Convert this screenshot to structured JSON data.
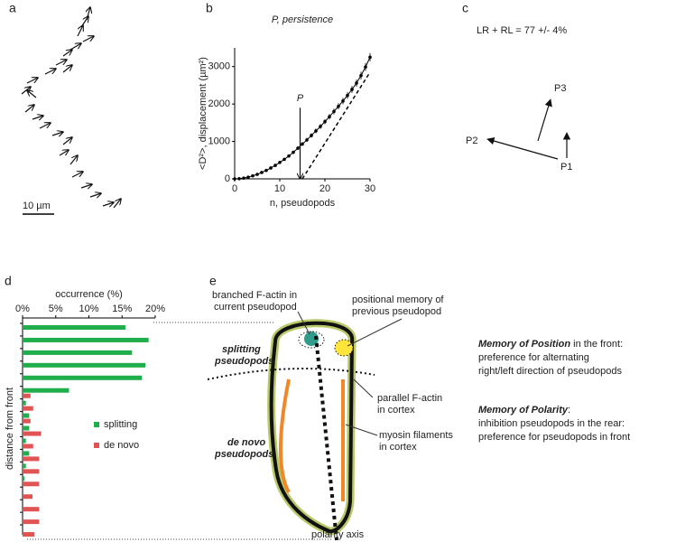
{
  "panel_labels": [
    "a",
    "b",
    "c",
    "d",
    "e"
  ],
  "panel_a": {
    "scale_bar": "10 µm"
  },
  "chart_data": [
    {
      "type": "line",
      "title": "P, persistence",
      "xlabel": "n, pseudopods",
      "ylabel": "<D²>, displacement (µm²)",
      "x": [
        0,
        1,
        2,
        3,
        4,
        5,
        6,
        7,
        8,
        9,
        10,
        11,
        12,
        13,
        14,
        15,
        16,
        17,
        18,
        19,
        20,
        21,
        22,
        23,
        24,
        25,
        26,
        27,
        28,
        29,
        30
      ],
      "series": [
        {
          "color": "#000000",
          "values": [
            0,
            5,
            20,
            45,
            80,
            120,
            170,
            225,
            290,
            360,
            440,
            520,
            610,
            710,
            820,
            930,
            1040,
            1160,
            1280,
            1400,
            1530,
            1660,
            1800,
            1940,
            2080,
            2230,
            2390,
            2560,
            2760,
            2990,
            3250
          ],
          "errors": [
            0,
            2,
            4,
            6,
            8,
            10,
            14,
            18,
            22,
            26,
            30,
            34,
            38,
            42,
            46,
            50,
            54,
            58,
            62,
            66,
            70,
            74,
            78,
            82,
            86,
            90,
            94,
            98,
            102,
            106,
            110
          ]
        }
      ],
      "fit_line": {
        "x": [
          15,
          30
        ],
        "values": [
          0,
          2850
        ]
      },
      "annotation": {
        "text": "P",
        "x": 14.5,
        "y_from": 1900,
        "y_to": 0
      },
      "xlim": [
        0,
        30
      ],
      "xticks": [
        0,
        10,
        20,
        30
      ],
      "ylim": [
        0,
        3500
      ],
      "yticks": [
        0,
        1000,
        2000,
        3000
      ]
    },
    {
      "type": "hbar",
      "xlabel": "occurrence (%)",
      "ylabel": "distance from front",
      "categories": [
        null,
        null,
        null,
        null,
        null,
        null,
        null,
        null,
        null,
        null,
        null,
        null,
        null,
        null,
        null,
        null,
        null
      ],
      "series": [
        {
          "name": "splitting",
          "color": "#1fae4b",
          "values": [
            15.5,
            19,
            16.5,
            18.5,
            18,
            7,
            0.5,
            1,
            1,
            0.5,
            1,
            0.5,
            0.3,
            0,
            0,
            0,
            0
          ]
        },
        {
          "name": "de novo",
          "color": "#e05454",
          "values": [
            0,
            0,
            0,
            0,
            0,
            1.2,
            1.6,
            1.2,
            2.8,
            1.6,
            2.5,
            2.5,
            2.5,
            1.5,
            2.5,
            2.5,
            1.8
          ]
        }
      ],
      "xlim": [
        0,
        20
      ],
      "xticks": [
        {
          "value": 0,
          "label": "0%"
        },
        {
          "value": 5,
          "label": "5%"
        },
        {
          "value": 10,
          "label": "10%"
        },
        {
          "value": 15,
          "label": "15%"
        },
        {
          "value": 20,
          "label": "20%"
        }
      ]
    }
  ],
  "panel_c": {
    "equation": "LR + RL = 77 +/- 4%",
    "p1": "P1",
    "p2": "P2",
    "p3": "P3"
  },
  "panel_e": {
    "branched": [
      "branched F-actin in",
      "current pseudopod"
    ],
    "positional": [
      "positional memory of",
      "previous pseudopod"
    ],
    "splitting": [
      "splitting",
      "pseudopods"
    ],
    "de_novo": [
      "de novo",
      "pseudopods"
    ],
    "parallel": [
      "parallel F-actin",
      "in cortex"
    ],
    "myosin": [
      "myosin filaments",
      "in cortex"
    ],
    "axis": "polarity axis",
    "memory_position": {
      "title": "Memory of Position",
      "rest": " in the front:",
      "lines": [
        "preference for alternating",
        "right/left direction of pseudopods"
      ]
    },
    "memory_polarity": {
      "title": "Memory of Polarity",
      "rest": ":",
      "lines": [
        "inhibition pseudopods in the rear:",
        "preference for pseudopods in front"
      ]
    }
  }
}
